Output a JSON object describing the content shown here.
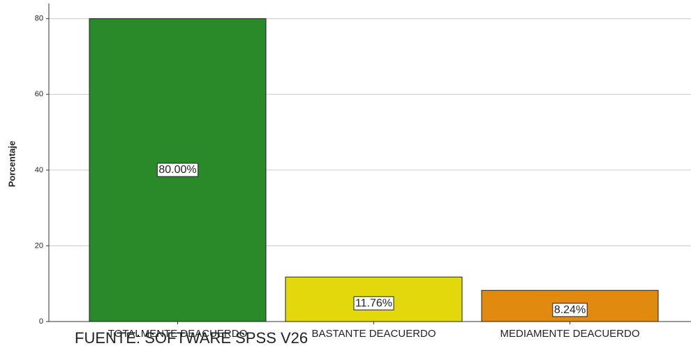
{
  "chart_data": {
    "type": "bar",
    "ylabel": "Porcentaje",
    "categories": [
      "TOTALMENTE DEACUERDO",
      "BASTANTE DEACUERDO",
      "MEDIAMENTE DEACUERDO"
    ],
    "values": [
      80,
      11.76,
      8.24
    ],
    "value_labels": [
      "80.00%",
      "11.76%",
      "8.24%"
    ],
    "colors": [
      "#2a8a2a",
      "#e3d80c",
      "#e08a10"
    ],
    "ylim": [
      0,
      84
    ],
    "yticks": [
      0,
      20,
      40,
      60,
      80
    ],
    "grid": true,
    "note": "FUENTE: SOFTWARE SPSS V26"
  }
}
